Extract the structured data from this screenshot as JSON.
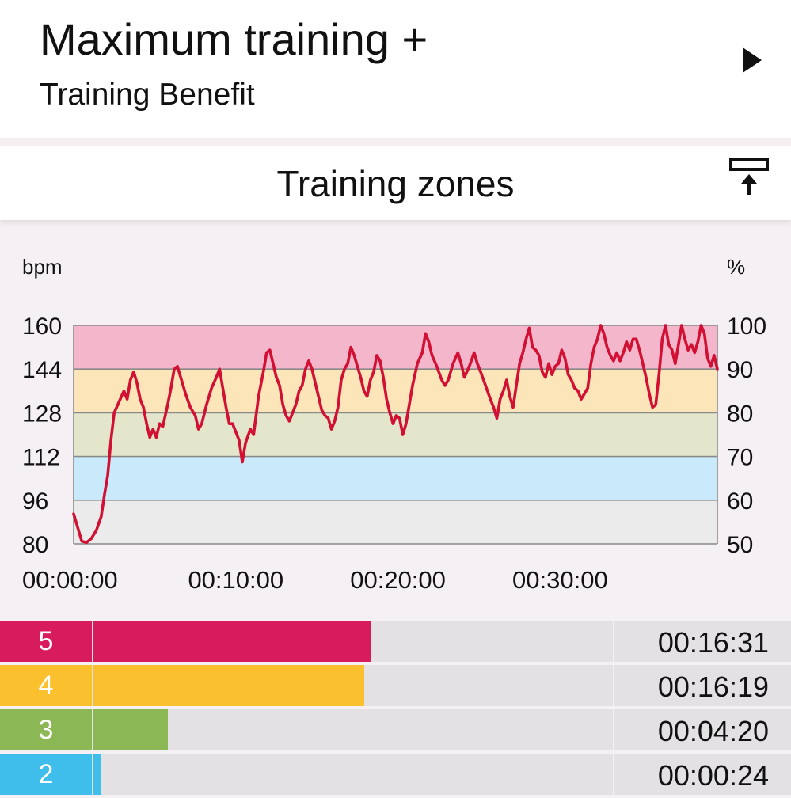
{
  "header": {
    "title": "Maximum training +",
    "subtitle": "Training Benefit",
    "play_icon": "play-icon"
  },
  "section": {
    "title": "Training zones",
    "export_icon": "export-to-top-icon"
  },
  "chart_data": {
    "type": "line",
    "title": "",
    "y_unit_left": "bpm",
    "y_unit_right": "%",
    "y_ticks_left": [
      "160",
      "144",
      "128",
      "112",
      "96",
      "80"
    ],
    "y_ticks_right": [
      "100",
      "90",
      "80",
      "70",
      "60",
      "50"
    ],
    "x_ticks": [
      "00:00:00",
      "00:10:00",
      "00:20:00",
      "00:30:00"
    ],
    "xlim_minutes": [
      0,
      39
    ],
    "ylim": [
      80,
      160
    ],
    "grid": true,
    "zone_bands": [
      {
        "from": 144,
        "to": 160,
        "color": "#f4b6cb"
      },
      {
        "from": 128,
        "to": 144,
        "color": "#fbe5b9"
      },
      {
        "from": 112,
        "to": 128,
        "color": "#e4e6cc"
      },
      {
        "from": 96,
        "to": 112,
        "color": "#c9eafa"
      },
      {
        "from": 80,
        "to": 96,
        "color": "#ebebeb"
      }
    ],
    "line_color": "#d21034",
    "series": [
      {
        "points": [
          [
            0,
            91
          ],
          [
            0.25,
            86
          ],
          [
            0.5,
            81
          ],
          [
            0.8,
            80.5
          ],
          [
            1.1,
            82
          ],
          [
            1.4,
            85
          ],
          [
            1.7,
            90
          ],
          [
            1.9,
            98
          ],
          [
            2.1,
            105
          ],
          [
            2.3,
            118
          ],
          [
            2.5,
            128
          ],
          [
            2.8,
            132
          ],
          [
            3.1,
            136
          ],
          [
            3.3,
            133
          ],
          [
            3.5,
            140
          ],
          [
            3.7,
            143
          ],
          [
            3.9,
            139
          ],
          [
            4.1,
            133
          ],
          [
            4.3,
            130
          ],
          [
            4.5,
            124
          ],
          [
            4.7,
            119
          ],
          [
            4.9,
            122
          ],
          [
            5.1,
            119
          ],
          [
            5.3,
            124
          ],
          [
            5.5,
            123
          ],
          [
            5.8,
            131
          ],
          [
            6.0,
            137
          ],
          [
            6.2,
            144
          ],
          [
            6.4,
            145
          ],
          [
            6.6,
            141
          ],
          [
            6.9,
            135
          ],
          [
            7.2,
            130
          ],
          [
            7.5,
            127
          ],
          [
            7.7,
            122
          ],
          [
            7.9,
            124
          ],
          [
            8.2,
            131
          ],
          [
            8.5,
            137
          ],
          [
            8.8,
            141
          ],
          [
            9.0,
            144
          ],
          [
            9.2,
            137
          ],
          [
            9.4,
            130
          ],
          [
            9.6,
            124
          ],
          [
            9.8,
            124
          ],
          [
            10.0,
            121
          ],
          [
            10.2,
            118
          ],
          [
            10.4,
            110
          ],
          [
            10.6,
            117
          ],
          [
            10.9,
            122
          ],
          [
            11.1,
            120
          ],
          [
            11.4,
            134
          ],
          [
            11.7,
            143
          ],
          [
            11.9,
            150
          ],
          [
            12.1,
            151
          ],
          [
            12.3,
            146
          ],
          [
            12.5,
            141
          ],
          [
            12.7,
            138
          ],
          [
            12.9,
            131
          ],
          [
            13.1,
            127
          ],
          [
            13.3,
            125
          ],
          [
            13.5,
            128
          ],
          [
            13.7,
            131
          ],
          [
            13.9,
            136
          ],
          [
            14.1,
            138
          ],
          [
            14.3,
            144
          ],
          [
            14.5,
            147
          ],
          [
            14.7,
            144
          ],
          [
            14.9,
            139
          ],
          [
            15.1,
            134
          ],
          [
            15.3,
            129
          ],
          [
            15.5,
            127
          ],
          [
            15.7,
            126
          ],
          [
            15.9,
            122
          ],
          [
            16.1,
            125
          ],
          [
            16.3,
            130
          ],
          [
            16.5,
            140
          ],
          [
            16.7,
            144
          ],
          [
            16.9,
            146
          ],
          [
            17.1,
            152
          ],
          [
            17.3,
            149
          ],
          [
            17.5,
            145
          ],
          [
            17.7,
            141
          ],
          [
            17.9,
            136
          ],
          [
            18.1,
            134
          ],
          [
            18.3,
            140
          ],
          [
            18.5,
            143
          ],
          [
            18.7,
            149
          ],
          [
            18.9,
            147
          ],
          [
            19.1,
            141
          ],
          [
            19.3,
            133
          ],
          [
            19.5,
            128
          ],
          [
            19.7,
            124
          ],
          [
            19.9,
            127
          ],
          [
            20.1,
            126
          ],
          [
            20.3,
            120
          ],
          [
            20.5,
            124
          ],
          [
            20.7,
            131
          ],
          [
            20.9,
            138
          ],
          [
            21.2,
            146
          ],
          [
            21.5,
            150
          ],
          [
            21.7,
            157
          ],
          [
            21.9,
            154
          ],
          [
            22.1,
            149
          ],
          [
            22.4,
            145
          ],
          [
            22.7,
            140
          ],
          [
            22.9,
            138
          ],
          [
            23.1,
            140
          ],
          [
            23.4,
            146
          ],
          [
            23.7,
            150
          ],
          [
            23.9,
            146
          ],
          [
            24.1,
            141
          ],
          [
            24.4,
            145
          ],
          [
            24.7,
            150
          ],
          [
            24.9,
            146
          ],
          [
            25.1,
            143
          ],
          [
            25.4,
            138
          ],
          [
            25.7,
            133
          ],
          [
            25.9,
            130
          ],
          [
            26.1,
            126
          ],
          [
            26.3,
            133
          ],
          [
            26.5,
            136
          ],
          [
            26.7,
            140
          ],
          [
            26.9,
            134
          ],
          [
            27.1,
            130
          ],
          [
            27.3,
            138
          ],
          [
            27.5,
            146
          ],
          [
            27.7,
            150
          ],
          [
            27.9,
            155
          ],
          [
            28.1,
            159
          ],
          [
            28.3,
            152
          ],
          [
            28.5,
            151
          ],
          [
            28.7,
            149
          ],
          [
            28.9,
            143
          ],
          [
            29.1,
            141
          ],
          [
            29.3,
            146
          ],
          [
            29.5,
            142
          ],
          [
            29.7,
            145
          ],
          [
            29.9,
            146
          ],
          [
            30.1,
            151
          ],
          [
            30.3,
            148
          ],
          [
            30.5,
            142
          ],
          [
            30.7,
            140
          ],
          [
            30.9,
            137
          ],
          [
            31.1,
            136
          ],
          [
            31.3,
            133
          ],
          [
            31.5,
            135
          ],
          [
            31.7,
            137
          ],
          [
            31.9,
            146
          ],
          [
            32.1,
            152
          ],
          [
            32.3,
            155
          ],
          [
            32.5,
            160
          ],
          [
            32.7,
            157
          ],
          [
            32.9,
            152
          ],
          [
            33.1,
            149
          ],
          [
            33.3,
            147
          ],
          [
            33.5,
            150
          ],
          [
            33.7,
            147
          ],
          [
            33.9,
            150
          ],
          [
            34.1,
            154
          ],
          [
            34.3,
            151
          ],
          [
            34.5,
            155
          ],
          [
            34.7,
            155
          ],
          [
            34.9,
            151
          ],
          [
            35.1,
            146
          ],
          [
            35.3,
            141
          ],
          [
            35.5,
            135
          ],
          [
            35.7,
            130
          ],
          [
            35.9,
            131
          ],
          [
            36.1,
            142
          ],
          [
            36.3,
            155
          ],
          [
            36.5,
            160
          ],
          [
            36.7,
            153
          ],
          [
            36.9,
            151
          ],
          [
            37.1,
            146
          ],
          [
            37.3,
            153
          ],
          [
            37.5,
            160
          ],
          [
            37.7,
            155
          ],
          [
            37.9,
            151
          ],
          [
            38.1,
            153
          ],
          [
            38.3,
            150
          ],
          [
            38.5,
            154
          ],
          [
            38.7,
            160
          ],
          [
            38.9,
            157
          ],
          [
            39.1,
            148
          ],
          [
            39.3,
            145
          ],
          [
            39.5,
            149
          ],
          [
            39.7,
            144
          ]
        ]
      }
    ]
  },
  "zones": [
    {
      "number": "5",
      "color": "#d81b5c",
      "fraction": 0.41,
      "time": "00:16:31"
    },
    {
      "number": "4",
      "color": "#fbc02d",
      "fraction": 0.4,
      "time": "00:16:19"
    },
    {
      "number": "3",
      "color": "#8bb854",
      "fraction": 0.11,
      "time": "00:04:20"
    },
    {
      "number": "2",
      "color": "#3fbdeb",
      "fraction": 0.01,
      "time": "00:00:24"
    }
  ]
}
